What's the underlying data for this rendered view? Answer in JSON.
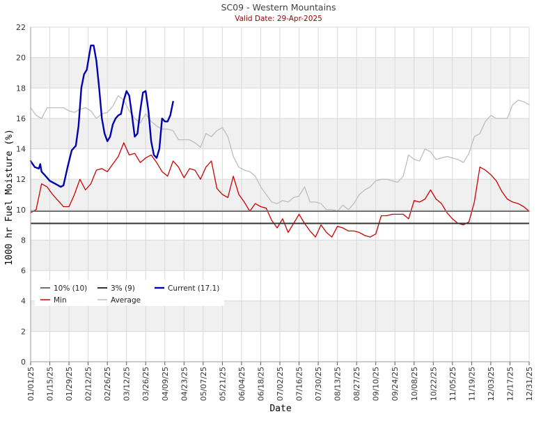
{
  "chart_data": {
    "type": "line",
    "title": "SC09 - Western Mountains",
    "subtitle": "Valid Date: 29-Apr-2025",
    "xlabel": "Date",
    "ylabel": "1000 hr Fuel Moisture (%)",
    "ylim": [
      0,
      22
    ],
    "yticks": [
      0,
      2,
      4,
      6,
      8,
      10,
      12,
      14,
      16,
      18,
      20,
      22
    ],
    "xlim": [
      "01/01/25",
      "12/31/25"
    ],
    "xtick_labels": [
      "01/01/25",
      "01/15/25",
      "01/29/25",
      "02/12/25",
      "02/26/25",
      "03/12/25",
      "03/26/25",
      "04/09/25",
      "04/23/25",
      "05/07/25",
      "05/21/25",
      "06/04/25",
      "06/18/25",
      "07/02/25",
      "07/16/25",
      "07/30/25",
      "08/13/25",
      "08/27/25",
      "09/10/25",
      "09/24/25",
      "10/08/25",
      "10/22/25",
      "11/05/25",
      "11/19/25",
      "12/03/25",
      "12/17/25",
      "12/31/25"
    ],
    "grid": true,
    "legend_position": "lower-left",
    "colors": {
      "pct10": "#707070",
      "pct3": "#333333",
      "current": "#0000b0",
      "min": "#cc0000",
      "average": "#bdbdbd",
      "title": "#404040",
      "subtitle": "#990000",
      "band": "#f0f0f0",
      "grid": "#d9d9d9"
    },
    "reference_lines": [
      {
        "name": "10% (10)",
        "value": 9.9
      },
      {
        "name": "3% (9)",
        "value": 9.1
      }
    ],
    "series": [
      {
        "name": "Current (17.1)",
        "key": "current",
        "x": [
          "01/01/25",
          "01/04/25",
          "01/07/25",
          "01/08/25",
          "01/09/25",
          "01/11/25",
          "01/15/25",
          "01/19/25",
          "01/23/25",
          "01/25/25",
          "01/28/25",
          "01/31/25",
          "02/03/25",
          "02/05/25",
          "02/07/25",
          "02/09/25",
          "02/11/25",
          "02/14/25",
          "02/16/25",
          "02/18/25",
          "02/20/25",
          "02/22/25",
          "02/24/25",
          "02/26/25",
          "02/28/25",
          "03/02/25",
          "03/04/25",
          "03/06/25",
          "03/08/25",
          "03/10/25",
          "03/12/25",
          "03/14/25",
          "03/16/25",
          "03/18/25",
          "03/20/25",
          "03/22/25",
          "03/24/25",
          "03/26/25",
          "03/28/25",
          "03/30/25",
          "04/01/25",
          "04/03/25",
          "04/05/25",
          "04/07/25",
          "04/09/25",
          "04/11/25",
          "04/13/25",
          "04/15/25",
          "04/17/25",
          "04/19/25",
          "04/21/25",
          "04/23/25",
          "04/25/25",
          "04/27/25",
          "04/29/25"
        ],
        "values": [
          13.2,
          12.8,
          12.7,
          13.0,
          12.5,
          12.3,
          11.9,
          11.7,
          11.5,
          11.6,
          12.8,
          13.9,
          14.2,
          15.5,
          18.0,
          18.9,
          19.2,
          20.8,
          20.8,
          19.8,
          18.0,
          16.0,
          15.0,
          14.5,
          14.8,
          15.6,
          16.0,
          16.2,
          16.3,
          17.2,
          17.8,
          17.5,
          16.2,
          14.8,
          15.0,
          16.5,
          17.7,
          17.8,
          16.5,
          14.5,
          13.6,
          13.4,
          14.0,
          16.0,
          15.8,
          15.8,
          16.2,
          17.1,
          null,
          null,
          null,
          null,
          null,
          null,
          null
        ]
      },
      {
        "name": "Min",
        "key": "min",
        "x": [
          "01/01/25",
          "01/05/25",
          "01/09/25",
          "01/13/25",
          "01/17/25",
          "01/21/25",
          "01/25/25",
          "01/29/25",
          "02/02/25",
          "02/06/25",
          "02/10/25",
          "02/14/25",
          "02/18/25",
          "02/22/25",
          "02/26/25",
          "03/02/25",
          "03/06/25",
          "03/10/25",
          "03/14/25",
          "03/18/25",
          "03/22/25",
          "03/26/25",
          "03/30/25",
          "04/03/25",
          "04/07/25",
          "04/11/25",
          "04/15/25",
          "04/19/25",
          "04/23/25",
          "04/27/25",
          "05/01/25",
          "05/05/25",
          "05/09/25",
          "05/13/25",
          "05/17/25",
          "05/21/25",
          "05/25/25",
          "05/29/25",
          "06/02/25",
          "06/06/25",
          "06/10/25",
          "06/14/25",
          "06/18/25",
          "06/22/25",
          "06/26/25",
          "06/30/25",
          "07/04/25",
          "07/08/25",
          "07/12/25",
          "07/16/25",
          "07/20/25",
          "07/24/25",
          "07/28/25",
          "08/01/25",
          "08/05/25",
          "08/09/25",
          "08/13/25",
          "08/17/25",
          "08/21/25",
          "08/25/25",
          "08/29/25",
          "09/02/25",
          "09/06/25",
          "09/10/25",
          "09/14/25",
          "09/18/25",
          "09/22/25",
          "09/26/25",
          "09/30/25",
          "10/04/25",
          "10/08/25",
          "10/12/25",
          "10/16/25",
          "10/20/25",
          "10/24/25",
          "10/28/25",
          "11/01/25",
          "11/05/25",
          "11/09/25",
          "11/13/25",
          "11/17/25",
          "11/21/25",
          "11/25/25",
          "11/29/25",
          "12/03/25",
          "12/07/25",
          "12/11/25",
          "12/15/25",
          "12/19/25",
          "12/23/25",
          "12/27/25",
          "12/31/25"
        ],
        "values": [
          9.8,
          10.0,
          11.7,
          11.5,
          11.0,
          10.6,
          10.2,
          10.2,
          11.0,
          12.0,
          11.3,
          11.7,
          12.6,
          12.7,
          12.5,
          13.0,
          13.5,
          14.4,
          13.6,
          13.7,
          13.1,
          13.4,
          13.6,
          13.1,
          12.5,
          12.2,
          13.2,
          12.8,
          12.1,
          12.7,
          12.6,
          12.0,
          12.8,
          13.2,
          11.4,
          11.0,
          10.8,
          12.2,
          11.0,
          10.5,
          9.9,
          10.4,
          10.2,
          10.1,
          9.3,
          8.8,
          9.4,
          8.5,
          9.1,
          9.7,
          9.1,
          8.6,
          8.2,
          9.0,
          8.5,
          8.2,
          8.9,
          8.8,
          8.6,
          8.6,
          8.5,
          8.3,
          8.2,
          8.4,
          9.6,
          9.6,
          9.7,
          9.7,
          9.7,
          9.4,
          10.6,
          10.5,
          10.7,
          11.3,
          10.7,
          10.4,
          9.8,
          9.4,
          9.1,
          9.0,
          9.2,
          10.5,
          12.8,
          12.6,
          12.3,
          11.9,
          11.2,
          10.7,
          10.5,
          10.4,
          10.2,
          9.9
        ]
      },
      {
        "name": "Average",
        "key": "average",
        "x": [
          "01/01/25",
          "01/05/25",
          "01/09/25",
          "01/13/25",
          "01/17/25",
          "01/21/25",
          "01/25/25",
          "01/29/25",
          "02/02/25",
          "02/06/25",
          "02/10/25",
          "02/14/25",
          "02/18/25",
          "02/22/25",
          "02/26/25",
          "03/02/25",
          "03/06/25",
          "03/10/25",
          "03/14/25",
          "03/18/25",
          "03/22/25",
          "03/26/25",
          "03/30/25",
          "04/03/25",
          "04/07/25",
          "04/11/25",
          "04/15/25",
          "04/19/25",
          "04/23/25",
          "04/27/25",
          "05/01/25",
          "05/05/25",
          "05/09/25",
          "05/13/25",
          "05/17/25",
          "05/21/25",
          "05/25/25",
          "05/29/25",
          "06/02/25",
          "06/06/25",
          "06/10/25",
          "06/14/25",
          "06/18/25",
          "06/22/25",
          "06/26/25",
          "06/30/25",
          "07/04/25",
          "07/08/25",
          "07/12/25",
          "07/16/25",
          "07/20/25",
          "07/24/25",
          "07/28/25",
          "08/01/25",
          "08/05/25",
          "08/09/25",
          "08/13/25",
          "08/17/25",
          "08/21/25",
          "08/25/25",
          "08/29/25",
          "09/02/25",
          "09/06/25",
          "09/10/25",
          "09/14/25",
          "09/18/25",
          "09/22/25",
          "09/26/25",
          "09/30/25",
          "10/04/25",
          "10/08/25",
          "10/12/25",
          "10/16/25",
          "10/20/25",
          "10/24/25",
          "10/28/25",
          "11/01/25",
          "11/05/25",
          "11/09/25",
          "11/13/25",
          "11/17/25",
          "11/21/25",
          "11/25/25",
          "11/29/25",
          "12/03/25",
          "12/07/25",
          "12/11/25",
          "12/15/25",
          "12/19/25",
          "12/23/25",
          "12/27/25",
          "12/31/25"
        ],
        "values": [
          16.7,
          16.2,
          16.0,
          16.7,
          16.7,
          16.7,
          16.7,
          16.5,
          16.4,
          16.6,
          16.7,
          16.5,
          16.0,
          16.3,
          16.4,
          16.8,
          17.5,
          17.2,
          16.5,
          16.0,
          15.7,
          16.3,
          15.8,
          15.5,
          15.3,
          15.3,
          15.2,
          14.6,
          14.6,
          14.6,
          14.4,
          14.1,
          15.0,
          14.8,
          15.2,
          15.4,
          14.8,
          13.5,
          12.8,
          12.6,
          12.5,
          12.2,
          11.5,
          11.0,
          10.5,
          10.4,
          10.6,
          10.5,
          10.8,
          10.9,
          11.5,
          10.5,
          10.5,
          10.4,
          10.0,
          10.0,
          9.9,
          10.3,
          10.0,
          10.4,
          11.0,
          11.3,
          11.5,
          11.9,
          12.0,
          12.0,
          11.9,
          11.8,
          12.2,
          13.6,
          13.3,
          13.2,
          14.0,
          13.8,
          13.3,
          13.4,
          13.5,
          13.4,
          13.3,
          13.1,
          13.7,
          14.8,
          15.0,
          15.8,
          16.2,
          16.0,
          16.0,
          16.0,
          16.9,
          17.2,
          17.1,
          16.9
        ]
      }
    ],
    "legend": [
      {
        "key": "pct10",
        "label": "10% (10)"
      },
      {
        "key": "pct3",
        "label": "3% (9)"
      },
      {
        "key": "current",
        "label": "Current (17.1)"
      },
      {
        "key": "min",
        "label": "Min"
      },
      {
        "key": "average",
        "label": "Average"
      }
    ]
  }
}
